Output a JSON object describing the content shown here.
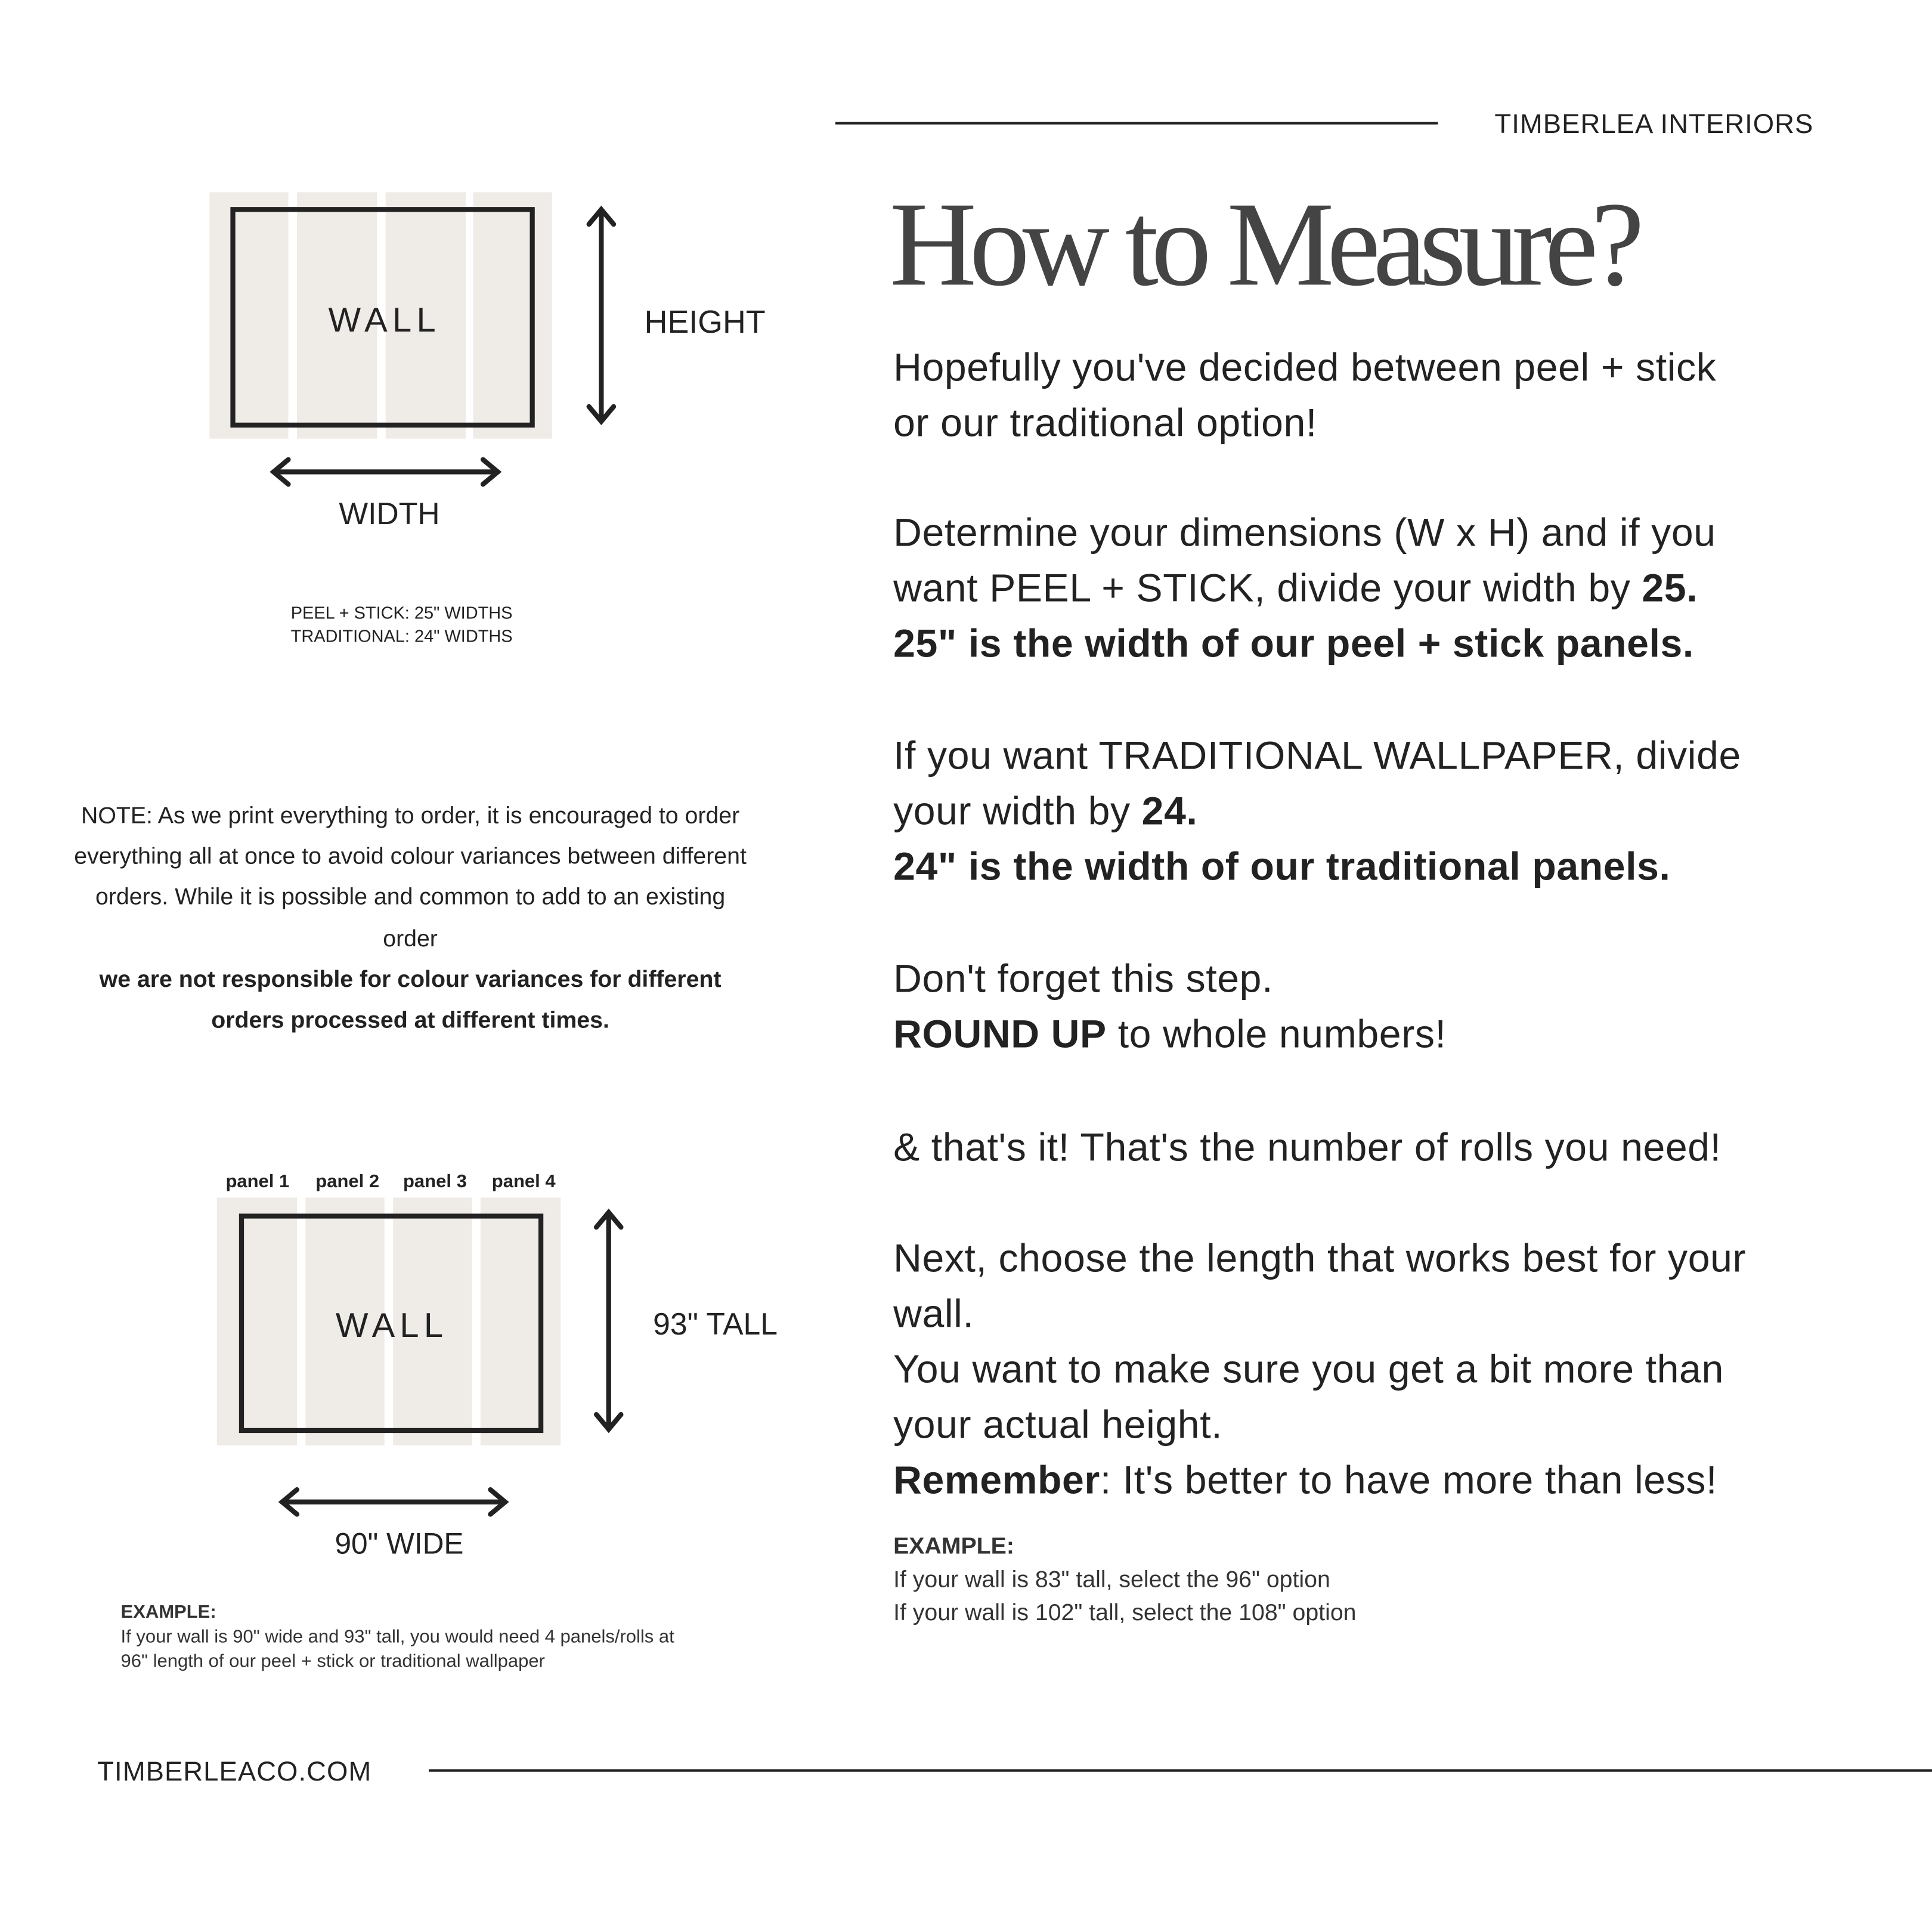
{
  "header": {
    "brand": "TIMBERLEA INTERIORS"
  },
  "title": "How to Measure?",
  "main": {
    "p1": [
      "Hopefully you've decided between peel + stick",
      "or our traditional option!"
    ],
    "p2": {
      "l1": "Determine your dimensions (W x H) and if you",
      "l2a": "want PEEL + STICK, divide your width by ",
      "l2b": "25.",
      "l3": "25\" is the width of our peel + stick panels."
    },
    "p3": {
      "l1": "If you want TRADITIONAL WALLPAPER, divide",
      "l2a": "your width by ",
      "l2b": "24.",
      "l3": "24\" is the width of our traditional panels."
    },
    "p4": {
      "l1": "Don't forget this step.",
      "l2a": "ROUND UP",
      "l2b": " to whole numbers!"
    },
    "p5": "& that's it! That's the number of rolls you need!",
    "p6": {
      "l1": "Next, choose the length that works best for your",
      "l2": "wall.",
      "l3": "You want to make sure you get a bit more than",
      "l4": "your actual height.",
      "l5a": "Remember",
      "l5b": ": It's better to have more than less!"
    },
    "example": {
      "heading": "EXAMPLE:",
      "lines": [
        "If your wall is 83\" tall, select the 96\" option",
        "If your wall is 102\" tall, select the 108\" option"
      ]
    }
  },
  "diagram1": {
    "wall": "WALL",
    "height": "HEIGHT",
    "width": "WIDTH",
    "notes": [
      "PEEL + STICK: 25\" WIDTHS",
      "TRADITIONAL: 24\" WIDTHS"
    ]
  },
  "note": {
    "text": "NOTE: As we print everything to order, it is encouraged to order everything all at once to avoid colour variances between different orders. While it is possible and common to add to an existing order",
    "bold": "we are not responsible for colour variances for different orders processed at different times."
  },
  "diagram2": {
    "panels": [
      "panel 1",
      "panel 2",
      "panel 3",
      "panel 4"
    ],
    "wall": "WALL",
    "height": "93\" TALL",
    "width": "90\" WIDE"
  },
  "example2": {
    "heading": "EXAMPLE:",
    "lines": [
      "If your wall is 90\" wide and 93\" tall, you would need 4 panels/rolls at",
      "96\" length of our peel + stick or traditional wallpaper"
    ]
  },
  "footer": {
    "url": "TIMBERLEACO.COM"
  },
  "colors": {
    "panel": "#efebe7",
    "ink": "#222222",
    "title": "#444444"
  }
}
